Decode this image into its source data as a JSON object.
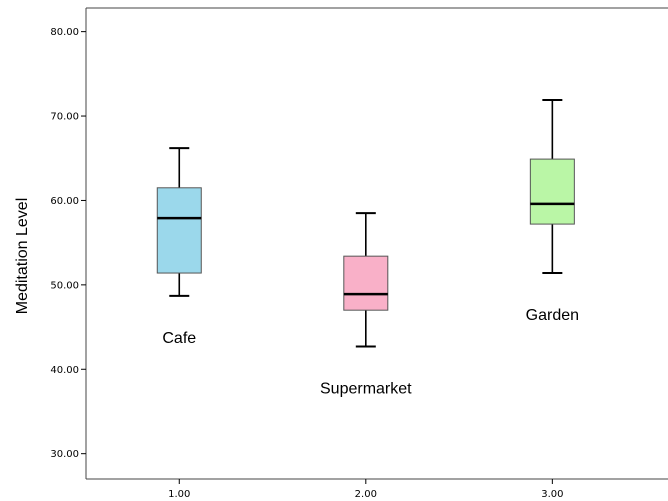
{
  "chart_data": {
    "type": "boxplot",
    "xlabel": "",
    "ylabel": "Meditation Level",
    "ylim": [
      27,
      82.8
    ],
    "xlim": [
      0.5,
      3.62
    ],
    "x_ticks": [
      "1.00",
      "2.00",
      "3.00"
    ],
    "y_ticks": [
      "30.00",
      "40.00",
      "50.00",
      "60.00",
      "70.00",
      "80.00"
    ],
    "grid": false,
    "series": [
      {
        "x": 1,
        "label": "Cafe",
        "color": "#9bd8eb",
        "min": 48.7,
        "q1": 51.4,
        "median": 57.9,
        "q3": 61.5,
        "max": 66.2
      },
      {
        "x": 2,
        "label": "Supermarket",
        "color": "#f9b0c8",
        "min": 42.7,
        "q1": 47.0,
        "median": 48.9,
        "q3": 53.4,
        "max": 58.5
      },
      {
        "x": 3,
        "label": "Garden",
        "color": "#baf6a6",
        "min": 51.4,
        "q1": 57.2,
        "median": 59.6,
        "q3": 64.9,
        "max": 71.9
      }
    ]
  }
}
